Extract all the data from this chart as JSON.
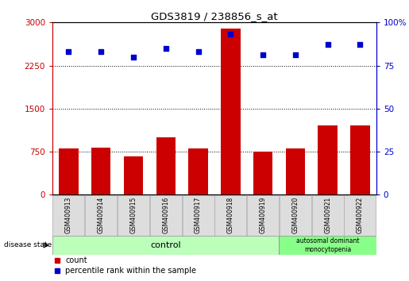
{
  "title": "GDS3819 / 238856_s_at",
  "samples": [
    "GSM400913",
    "GSM400914",
    "GSM400915",
    "GSM400916",
    "GSM400917",
    "GSM400918",
    "GSM400919",
    "GSM400920",
    "GSM400921",
    "GSM400922"
  ],
  "counts": [
    800,
    820,
    660,
    1000,
    800,
    2900,
    750,
    800,
    1200,
    1200
  ],
  "percentiles": [
    83,
    83,
    80,
    85,
    83,
    93,
    81,
    81,
    87,
    87
  ],
  "ylim_left": [
    0,
    3000
  ],
  "ylim_right": [
    0,
    100
  ],
  "yticks_left": [
    0,
    750,
    1500,
    2250,
    3000
  ],
  "yticks_right": [
    0,
    25,
    50,
    75,
    100
  ],
  "bar_color": "#cc0000",
  "dot_color": "#0000cc",
  "control_label": "control",
  "disease_label": "autosomal dominant\nmonocytopenia",
  "control_color": "#bbffbb",
  "disease_color": "#88ff88",
  "legend_count_label": "count",
  "legend_pct_label": "percentile rank within the sample",
  "disease_state_label": "disease state",
  "left_tick_color": "#cc0000",
  "right_tick_color": "#0000cc",
  "n_control": 7,
  "n_disease": 3
}
